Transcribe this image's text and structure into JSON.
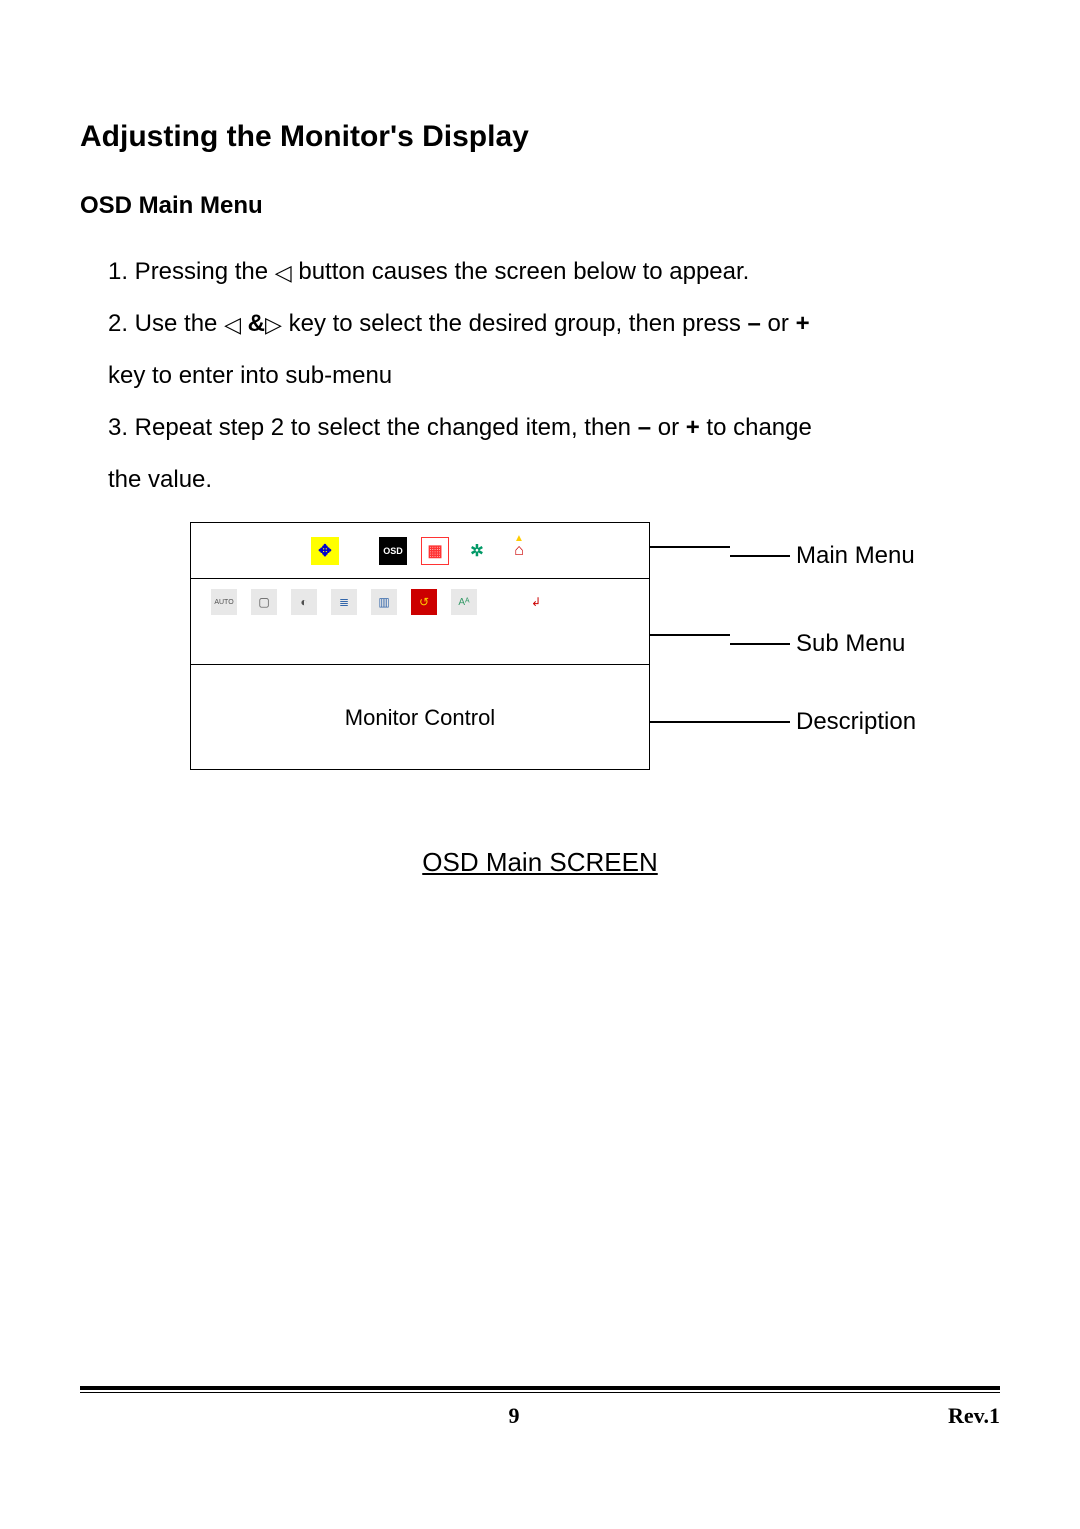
{
  "title": "Adjusting the Monitor's Display",
  "subtitle": "OSD Main Menu",
  "instructions": {
    "step1_a": "1. Pressing the ",
    "step1_b": " button causes the screen below to appear.",
    "step2_a": "2. Use the ",
    "step2_amp": "&",
    "step2_b": " key to select the desired group, then press ",
    "step2_minus": "–",
    "step2_or": " or ",
    "step2_plus": "+",
    "step2_c": "key to enter into sub-menu",
    "step3_a": "3. Repeat step 2 to select the changed item, then ",
    "step3_minus": "–",
    "step3_or": " or ",
    "step3_plus": "+",
    "step3_b": " to change",
    "step3_c": "the value."
  },
  "osd": {
    "main_menu_label": "Main Menu",
    "sub_menu_label": "Sub Menu",
    "description_label": "Description",
    "row3_text": "Monitor Control",
    "icons_row1": [
      {
        "name": "position-icon",
        "bg": "#ffff00",
        "fg": "#0000cc",
        "glyph": "✥"
      },
      {
        "name": "osd-icon",
        "bg": "#000000",
        "fg": "#ffffff",
        "glyph": "OSD",
        "fs": "9px"
      },
      {
        "name": "grid-icon",
        "bg": "#ffffff",
        "fg": "#ff3333",
        "glyph": "▦",
        "border": "#ff3333"
      },
      {
        "name": "tools-icon",
        "bg": "#ffffff",
        "fg": "#009966",
        "glyph": "✲"
      },
      {
        "name": "home-icon",
        "bg": "#ffffff",
        "fg": "#cc0000",
        "glyph": "⌂",
        "accent": "#ffcc00"
      }
    ],
    "icons_row2": [
      {
        "name": "auto-icon",
        "bg": "#e8e8e8",
        "fg": "#505050",
        "glyph": "AUTO",
        "fs": "7px"
      },
      {
        "name": "screen-icon",
        "bg": "#e8e8e8",
        "fg": "#505050",
        "glyph": "▢"
      },
      {
        "name": "contrast-icon",
        "bg": "#e8e8e8",
        "fg": "#505050",
        "glyph": "◐"
      },
      {
        "name": "list-icon",
        "bg": "#e8e8e8",
        "fg": "#3366aa",
        "glyph": "≣"
      },
      {
        "name": "bars-icon",
        "bg": "#e8e8e8",
        "fg": "#3366aa",
        "glyph": "▥"
      },
      {
        "name": "reset-icon",
        "bg": "#cc0000",
        "fg": "#ffcc00",
        "glyph": "↺"
      },
      {
        "name": "text-icon",
        "bg": "#e8e8e8",
        "fg": "#339966",
        "glyph": "Aᴬ",
        "fs": "10px"
      },
      {
        "name": "exit-icon",
        "bg": "#ffffff",
        "fg": "#cc0000",
        "glyph": "↲"
      }
    ]
  },
  "caption": "OSD Main SCREEN",
  "footer": {
    "page": "9",
    "rev": "Rev.1"
  },
  "glyphs": {
    "tri_left": "◁",
    "tri_right": "▷"
  }
}
